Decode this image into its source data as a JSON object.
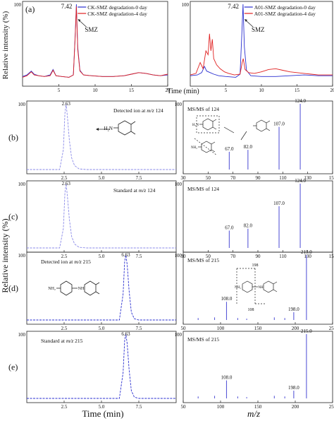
{
  "figure": {
    "ylabel_top": "Relative intensity (%)",
    "xlabel_top": "Time (min)",
    "ylabel_bottom": "Relative intensity (%)",
    "xlabel_bottom_left": "Time (min)",
    "xlabel_bottom_right": "m/z",
    "colors": {
      "blue": "#2a2fd0",
      "red": "#e02020",
      "pale": "#8a8ae8",
      "gray": "#999999"
    }
  },
  "chart_data": [
    {
      "id": "a1",
      "type": "line",
      "panel_label": "(a)",
      "y_max_label": "100",
      "xticks": [
        "5",
        "10",
        "15",
        "20"
      ],
      "xlim": [
        0,
        20
      ],
      "peak_label": "7.42",
      "peak_x": 7.42,
      "annotation": "SMZ",
      "series": [
        {
          "name": "CK-SMZ degradation-0 day",
          "color": "#2a2fd0",
          "points": [
            [
              0,
              7
            ],
            [
              0.6,
              9
            ],
            [
              1.2,
              14
            ],
            [
              1.6,
              10
            ],
            [
              2.2,
              8
            ],
            [
              3,
              7
            ],
            [
              3.8,
              9
            ],
            [
              4.2,
              16
            ],
            [
              4.6,
              8
            ],
            [
              5.4,
              7
            ],
            [
              6.4,
              6
            ],
            [
              7.0,
              9
            ],
            [
              7.25,
              60
            ],
            [
              7.42,
              100
            ],
            [
              7.6,
              45
            ],
            [
              7.9,
              15
            ],
            [
              8.4,
              9
            ],
            [
              9.5,
              8
            ],
            [
              11,
              7
            ],
            [
              12.5,
              7
            ],
            [
              14,
              8
            ],
            [
              15,
              10
            ],
            [
              16,
              12
            ],
            [
              17,
              11
            ],
            [
              18,
              9
            ],
            [
              19,
              8
            ],
            [
              20,
              9
            ]
          ]
        },
        {
          "name": "CK-SMZ degradation-4 day",
          "color": "#e02020",
          "points": [
            [
              0,
              6
            ],
            [
              0.6,
              8
            ],
            [
              1.2,
              13
            ],
            [
              1.6,
              9
            ],
            [
              2.2,
              8
            ],
            [
              3,
              7
            ],
            [
              3.8,
              8
            ],
            [
              4.2,
              15
            ],
            [
              4.6,
              8
            ],
            [
              5.4,
              7
            ],
            [
              6.4,
              6
            ],
            [
              7.0,
              9
            ],
            [
              7.25,
              58
            ],
            [
              7.42,
              97
            ],
            [
              7.6,
              42
            ],
            [
              7.9,
              14
            ],
            [
              8.4,
              9
            ],
            [
              9.5,
              8
            ],
            [
              11,
              7
            ],
            [
              12.5,
              7
            ],
            [
              14,
              8
            ],
            [
              15,
              10
            ],
            [
              16,
              12
            ],
            [
              17,
              11
            ],
            [
              18,
              9
            ],
            [
              19,
              8
            ],
            [
              20,
              10
            ]
          ]
        }
      ]
    },
    {
      "id": "a2",
      "type": "line",
      "y_max_label": "100",
      "xticks": [
        "5",
        "10",
        "15",
        "20"
      ],
      "xlim": [
        0,
        20
      ],
      "peak_label": "7.42",
      "peak_x": 7.42,
      "annotation": "SMZ",
      "series": [
        {
          "name": "A01-SMZ degradation-0 day",
          "color": "#2a2fd0",
          "points": [
            [
              0,
              8
            ],
            [
              1,
              9
            ],
            [
              1.6,
              12
            ],
            [
              2.0,
              20
            ],
            [
              2.3,
              14
            ],
            [
              2.8,
              12
            ],
            [
              3.3,
              10
            ],
            [
              4,
              8
            ],
            [
              5,
              7
            ],
            [
              6.4,
              6
            ],
            [
              7.0,
              10
            ],
            [
              7.25,
              62
            ],
            [
              7.42,
              100
            ],
            [
              7.6,
              45
            ],
            [
              7.9,
              15
            ],
            [
              8.5,
              8
            ],
            [
              10,
              7
            ],
            [
              12,
              7
            ],
            [
              14,
              8
            ],
            [
              16,
              9
            ],
            [
              18,
              8
            ],
            [
              20,
              8
            ]
          ]
        },
        {
          "name": "A01-SMZ degradation-4 day",
          "color": "#e02020",
          "points": [
            [
              0,
              9
            ],
            [
              0.8,
              11
            ],
            [
              1.4,
              25
            ],
            [
              1.8,
              17
            ],
            [
              2.2,
              40
            ],
            [
              2.5,
              35
            ],
            [
              2.7,
              62
            ],
            [
              2.9,
              40
            ],
            [
              3.1,
              55
            ],
            [
              3.3,
              30
            ],
            [
              3.7,
              22
            ],
            [
              4.2,
              17
            ],
            [
              4.8,
              13
            ],
            [
              5.4,
              11
            ],
            [
              6.2,
              9
            ],
            [
              7.0,
              10
            ],
            [
              7.3,
              25
            ],
            [
              7.45,
              30
            ],
            [
              7.7,
              16
            ],
            [
              8.2,
              12
            ],
            [
              9,
              11
            ],
            [
              10,
              13
            ],
            [
              11,
              16
            ],
            [
              12,
              17
            ],
            [
              13,
              15
            ],
            [
              14,
              13
            ],
            [
              15,
              12
            ],
            [
              16,
              11
            ],
            [
              17,
              10
            ],
            [
              18,
              9
            ],
            [
              19,
              9
            ],
            [
              20,
              9
            ]
          ]
        }
      ]
    },
    {
      "id": "b1",
      "type": "line",
      "panel_label": "(b)",
      "y_max_label": "100",
      "xticks": [
        "2.5",
        "5.0",
        "7.5"
      ],
      "xlim": [
        0,
        10
      ],
      "peak_label": "2.63",
      "peak_x": 2.63,
      "annotation": "Detected ion at m/z 124",
      "series": [
        {
          "color": "#8a8ae8",
          "points": [
            [
              0,
              0
            ],
            [
              2.2,
              0
            ],
            [
              2.45,
              30
            ],
            [
              2.55,
              85
            ],
            [
              2.63,
              100
            ],
            [
              2.72,
              80
            ],
            [
              2.85,
              45
            ],
            [
              3.0,
              18
            ],
            [
              3.2,
              6
            ],
            [
              3.5,
              1
            ],
            [
              4,
              0
            ],
            [
              10,
              0
            ]
          ]
        }
      ]
    },
    {
      "id": "b2",
      "type": "bar",
      "y_max_label": "100",
      "xticks": [
        "30",
        "50",
        "70",
        "90",
        "110",
        "130",
        "150"
      ],
      "xlim": [
        30,
        150
      ],
      "annotation": "MS/MS of 124",
      "peaks": [
        {
          "x": 67.0,
          "y": 27,
          "label": "67.0"
        },
        {
          "x": 82.0,
          "y": 30,
          "label": "82.0"
        },
        {
          "x": 107.0,
          "y": 65,
          "label": "107.0"
        },
        {
          "x": 124.0,
          "y": 100,
          "label": "124.0"
        }
      ]
    },
    {
      "id": "c1",
      "type": "line",
      "panel_label": "(c)",
      "y_max_label": "100",
      "xticks": [
        "2.5",
        "5.0",
        "7.5"
      ],
      "xlim": [
        0,
        10
      ],
      "peak_label": "2.63",
      "peak_x": 2.63,
      "annotation": "Standard at m/z 124",
      "series": [
        {
          "color": "#8a8ae8",
          "points": [
            [
              0,
              0
            ],
            [
              2.2,
              0
            ],
            [
              2.45,
              30
            ],
            [
              2.55,
              85
            ],
            [
              2.63,
              100
            ],
            [
              2.72,
              80
            ],
            [
              2.85,
              45
            ],
            [
              3.0,
              18
            ],
            [
              3.2,
              6
            ],
            [
              3.5,
              1
            ],
            [
              4,
              0
            ],
            [
              10,
              0
            ]
          ]
        }
      ]
    },
    {
      "id": "c2",
      "type": "bar",
      "y_max_label": "100",
      "xticks": [
        "30",
        "50",
        "70",
        "90",
        "110",
        "130",
        "150"
      ],
      "xlim": [
        30,
        150
      ],
      "annotation": "MS/MS of 124",
      "peaks": [
        {
          "x": 67.0,
          "y": 27,
          "label": "67.0"
        },
        {
          "x": 82.0,
          "y": 30,
          "label": "82.0"
        },
        {
          "x": 107.0,
          "y": 65,
          "label": "107.0"
        },
        {
          "x": 124.0,
          "y": 100,
          "label": "124.0"
        }
      ]
    },
    {
      "id": "d1",
      "type": "line",
      "panel_label": "(d)",
      "y_max_label": "100",
      "xticks": [
        "2.5",
        "5.0",
        "7.5"
      ],
      "xlim": [
        0,
        10
      ],
      "peak_label": "6.63",
      "peak_x": 6.63,
      "annotation": "Detected ion at m/z 215",
      "series": [
        {
          "color": "#2a2fd0",
          "points": [
            [
              0,
              0
            ],
            [
              6.2,
              0
            ],
            [
              6.45,
              40
            ],
            [
              6.55,
              90
            ],
            [
              6.63,
              100
            ],
            [
              6.72,
              85
            ],
            [
              6.85,
              45
            ],
            [
              7.0,
              12
            ],
            [
              7.2,
              2
            ],
            [
              7.5,
              0
            ],
            [
              10,
              0
            ]
          ]
        }
      ]
    },
    {
      "id": "d2",
      "type": "bar",
      "y_max_label": "100",
      "xticks": [
        "50",
        "100",
        "150",
        "200",
        "250"
      ],
      "xlim": [
        50,
        250
      ],
      "annotation": "MS/MS of 215",
      "peaks": [
        {
          "x": 70,
          "y": 3
        },
        {
          "x": 92,
          "y": 4
        },
        {
          "x": 108.0,
          "y": 28,
          "label": "108.0"
        },
        {
          "x": 123,
          "y": 3
        },
        {
          "x": 135,
          "y": 2
        },
        {
          "x": 172,
          "y": 4
        },
        {
          "x": 186,
          "y": 3
        },
        {
          "x": 198.0,
          "y": 12,
          "label": "198.0"
        },
        {
          "x": 215.0,
          "y": 100,
          "label": "215.0"
        }
      ]
    },
    {
      "id": "e1",
      "type": "line",
      "panel_label": "(e)",
      "y_max_label": "100",
      "xticks": [
        "2.5",
        "5.0",
        "7.5"
      ],
      "xlim": [
        0,
        10
      ],
      "peak_label": "6.63",
      "peak_x": 6.63,
      "annotation": "Standard at m/z 215",
      "series": [
        {
          "color": "#2a2fd0",
          "points": [
            [
              0,
              0
            ],
            [
              6.2,
              0
            ],
            [
              6.45,
              40
            ],
            [
              6.55,
              90
            ],
            [
              6.63,
              100
            ],
            [
              6.72,
              85
            ],
            [
              6.85,
              45
            ],
            [
              7.0,
              12
            ],
            [
              7.2,
              2
            ],
            [
              7.5,
              0
            ],
            [
              10,
              0
            ]
          ]
        }
      ]
    },
    {
      "id": "e2",
      "type": "bar",
      "y_max_label": "100",
      "xticks": [
        "50",
        "100",
        "150",
        "200",
        "250"
      ],
      "xlim": [
        50,
        250
      ],
      "annotation": "MS/MS of 215",
      "peaks": [
        {
          "x": 70,
          "y": 3
        },
        {
          "x": 92,
          "y": 4
        },
        {
          "x": 108.0,
          "y": 28,
          "label": "108.0"
        },
        {
          "x": 123,
          "y": 3
        },
        {
          "x": 135,
          "y": 2
        },
        {
          "x": 172,
          "y": 4
        },
        {
          "x": 186,
          "y": 3
        },
        {
          "x": 198.0,
          "y": 12,
          "label": "198.0"
        },
        {
          "x": 215.0,
          "y": 100,
          "label": "215.0"
        }
      ]
    }
  ],
  "structures": {
    "b_main": {
      "substituent": "H₂N"
    },
    "b_ms_top": {
      "substituent": "H₂N"
    },
    "b_ms_left": {
      "substituent": "NH₂"
    },
    "d_main": {
      "left": "NH₂",
      "link": "NH"
    },
    "d_ms": {
      "left": "NH₂",
      "link": "NH",
      "frag_top": "198",
      "frag_bottom": "108"
    }
  }
}
